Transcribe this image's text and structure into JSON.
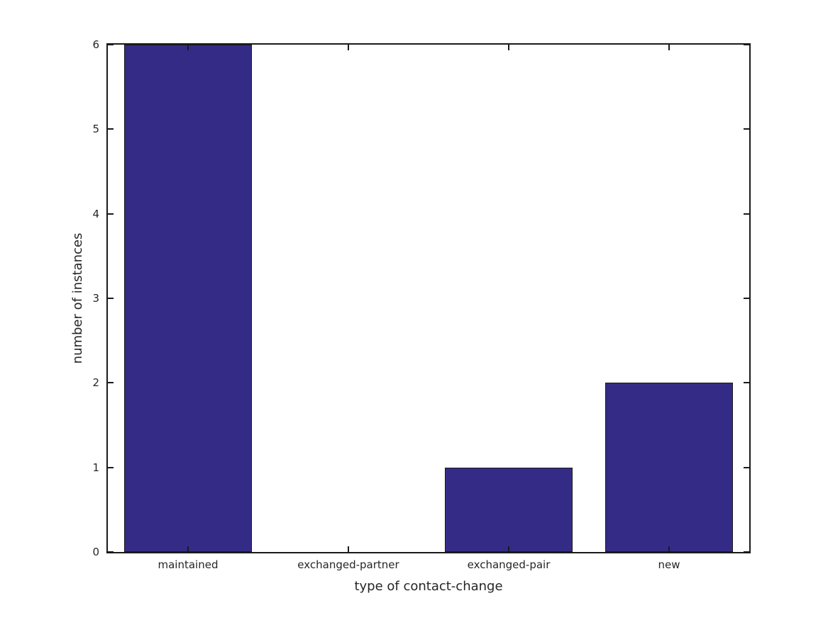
{
  "figure": {
    "background": "#ffffff"
  },
  "chart_data": {
    "type": "bar",
    "title": "",
    "categories": [
      "maintained",
      "exchanged-partner",
      "exchanged-pair",
      "new"
    ],
    "values": [
      6,
      0,
      1,
      2
    ],
    "xlabel": "type of contact-change",
    "ylabel": "number of instances",
    "ylim": [
      0,
      6
    ],
    "yticks": [
      0,
      1,
      2,
      3,
      4,
      5,
      6
    ],
    "bar_width_fraction": 0.8,
    "bar_color": "#342b87",
    "bar_edge_color": "#1a1a1a",
    "axis_color": "#1a1a1a",
    "text_color": "#262626",
    "grid": false,
    "legend": null,
    "tick_direction": "in"
  }
}
